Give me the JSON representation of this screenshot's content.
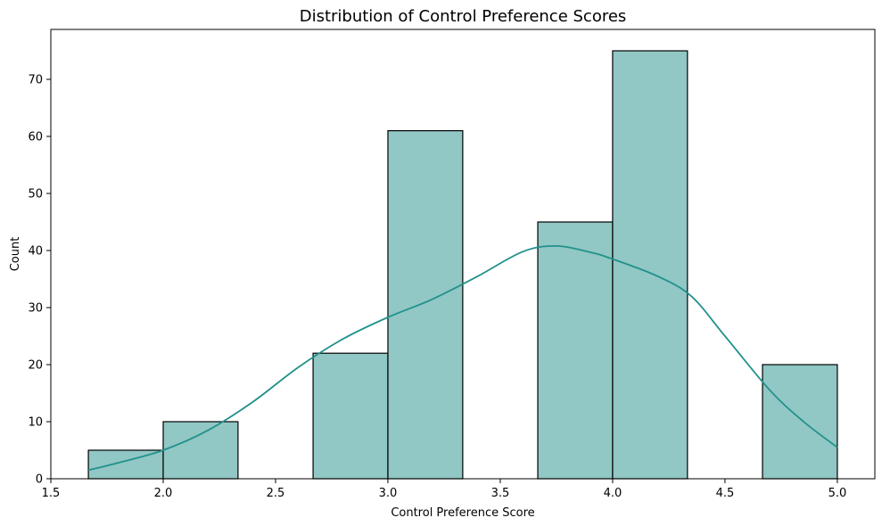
{
  "chart_data": {
    "type": "bar",
    "title": "Distribution of Control Preference Scores",
    "xlabel": "Control Preference Score",
    "ylabel": "Count",
    "xlim": [
      1.5,
      5.167
    ],
    "ylim": [
      0,
      78.75
    ],
    "xticks": [
      1.5,
      2.0,
      2.5,
      3.0,
      3.5,
      4.0,
      4.5,
      5.0
    ],
    "xtick_labels": [
      "1.5",
      "2.0",
      "2.5",
      "3.0",
      "3.5",
      "4.0",
      "4.5",
      "5.0"
    ],
    "yticks": [
      0,
      10,
      20,
      30,
      40,
      50,
      60,
      70
    ],
    "ytick_labels": [
      "0",
      "10",
      "20",
      "30",
      "40",
      "50",
      "60",
      "70"
    ],
    "bins": [
      {
        "start": 1.667,
        "end": 2.0,
        "count": 5
      },
      {
        "start": 2.0,
        "end": 2.333,
        "count": 10
      },
      {
        "start": 2.333,
        "end": 2.667,
        "count": 0
      },
      {
        "start": 2.667,
        "end": 3.0,
        "count": 22
      },
      {
        "start": 3.0,
        "end": 3.333,
        "count": 61
      },
      {
        "start": 3.333,
        "end": 3.667,
        "count": 0
      },
      {
        "start": 3.667,
        "end": 4.0,
        "count": 45
      },
      {
        "start": 4.0,
        "end": 4.333,
        "count": 75
      },
      {
        "start": 4.333,
        "end": 4.667,
        "count": 0
      },
      {
        "start": 4.667,
        "end": 5.0,
        "count": 20
      }
    ],
    "kde": {
      "x": [
        1.667,
        1.8,
        2.0,
        2.2,
        2.4,
        2.6,
        2.8,
        3.0,
        3.2,
        3.4,
        3.6,
        3.75,
        3.9,
        4.0,
        4.2,
        4.35,
        4.5,
        4.7,
        4.85,
        5.0
      ],
      "y": [
        1.5,
        2.8,
        5.0,
        8.5,
        13.5,
        19.5,
        24.5,
        28.3,
        31.5,
        35.5,
        39.8,
        40.8,
        39.7,
        38.5,
        35.5,
        32.0,
        25.0,
        15.5,
        10.0,
        5.5
      ]
    },
    "grid": false,
    "colors": {
      "bar_fill": "#91c7c4",
      "bar_edge": "#000000",
      "kde_line": "#21918c"
    }
  }
}
